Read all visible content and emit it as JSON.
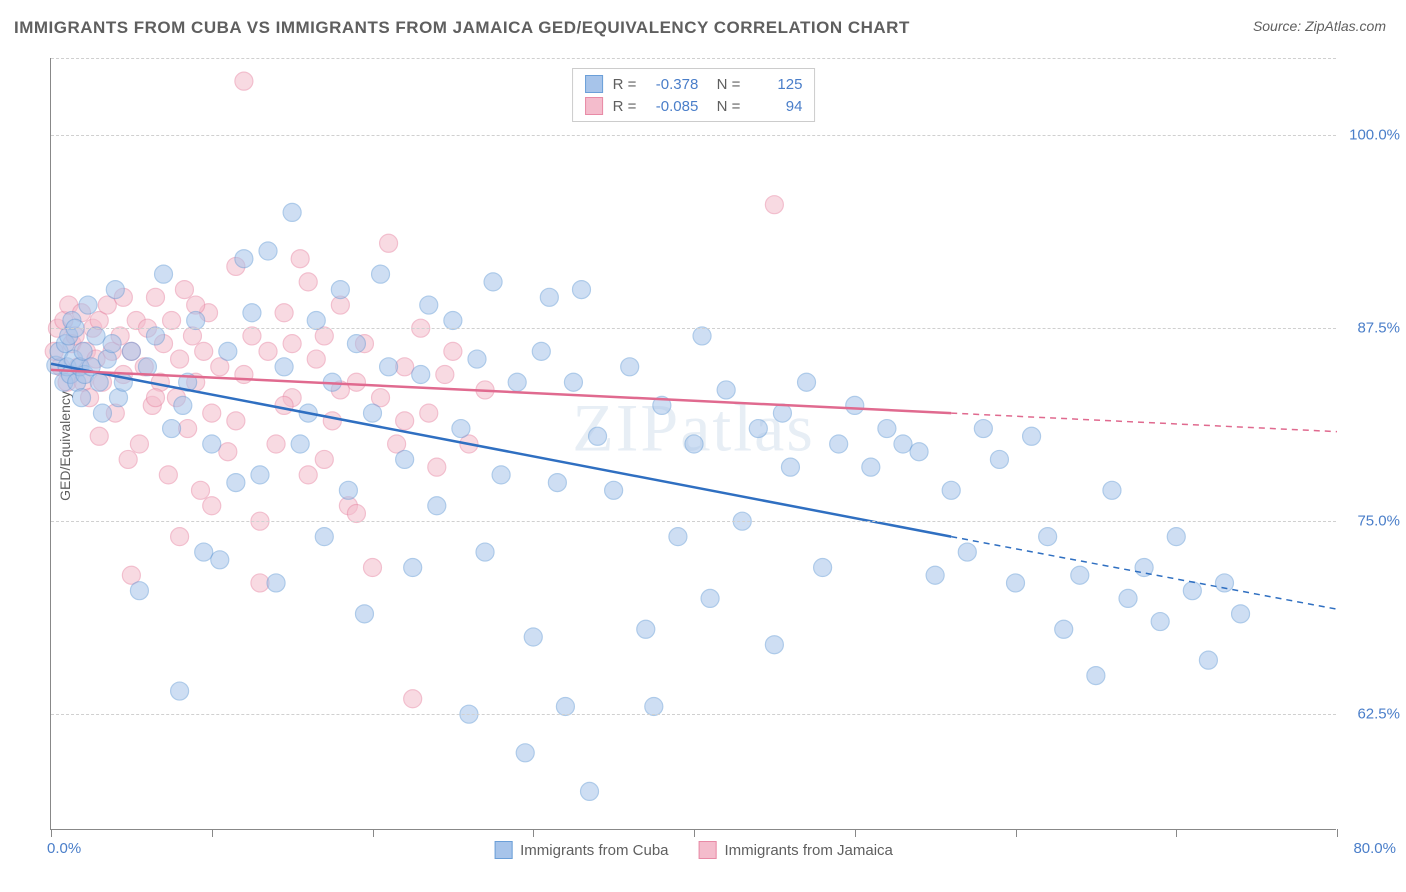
{
  "title": "IMMIGRANTS FROM CUBA VS IMMIGRANTS FROM JAMAICA GED/EQUIVALENCY CORRELATION CHART",
  "source": "Source: ZipAtlas.com",
  "ylabel": "GED/Equivalency",
  "watermark": "ZIPatlas",
  "chart": {
    "type": "scatter",
    "xlim": [
      0,
      80
    ],
    "ylim": [
      55,
      105
    ],
    "xtick_step": 10,
    "y_gridlines": [
      62.5,
      75.0,
      87.5,
      100.0,
      105.0
    ],
    "y_labels": [
      "62.5%",
      "75.0%",
      "87.5%",
      "100.0%"
    ],
    "x_label_min": "0.0%",
    "x_label_max": "80.0%",
    "background_color": "#ffffff",
    "grid_color": "#d0d0d0",
    "axis_color": "#888888",
    "tick_label_color": "#4a7ec9",
    "marker_radius": 9,
    "marker_opacity": 0.55,
    "line_width": 2.5,
    "series": [
      {
        "name": "Immigrants from Cuba",
        "color_fill": "#a7c4ea",
        "color_stroke": "#6b9fd8",
        "line_color": "#2f6fc1",
        "R": "-0.378",
        "N": "125",
        "trend": {
          "x1": 0,
          "y1": 85.2,
          "x2_solid": 56,
          "y2_solid": 74.0,
          "x2": 80,
          "y2": 69.3
        },
        "points": [
          [
            0.3,
            85.1
          ],
          [
            0.5,
            86.0
          ],
          [
            0.8,
            84.0
          ],
          [
            0.9,
            86.5
          ],
          [
            1.0,
            85.0
          ],
          [
            1.1,
            87.0
          ],
          [
            1.2,
            84.5
          ],
          [
            1.3,
            88.0
          ],
          [
            1.4,
            85.5
          ],
          [
            1.5,
            87.5
          ],
          [
            1.6,
            84.0
          ],
          [
            1.8,
            85.0
          ],
          [
            1.9,
            83.0
          ],
          [
            2.0,
            86.0
          ],
          [
            2.1,
            84.5
          ],
          [
            2.3,
            89.0
          ],
          [
            2.5,
            85.0
          ],
          [
            2.8,
            87.0
          ],
          [
            3.0,
            84.0
          ],
          [
            3.2,
            82.0
          ],
          [
            3.5,
            85.5
          ],
          [
            3.8,
            86.5
          ],
          [
            4.0,
            90.0
          ],
          [
            4.2,
            83.0
          ],
          [
            4.5,
            84.0
          ],
          [
            5.0,
            86.0
          ],
          [
            5.5,
            70.5
          ],
          [
            6.0,
            85.0
          ],
          [
            6.5,
            87.0
          ],
          [
            7.0,
            91.0
          ],
          [
            7.5,
            81.0
          ],
          [
            8.0,
            64.0
          ],
          [
            8.2,
            82.5
          ],
          [
            8.5,
            84.0
          ],
          [
            9.0,
            88.0
          ],
          [
            9.5,
            73.0
          ],
          [
            10.0,
            80.0
          ],
          [
            10.5,
            72.5
          ],
          [
            11.0,
            86.0
          ],
          [
            11.5,
            77.5
          ],
          [
            12.0,
            92.0
          ],
          [
            12.5,
            88.5
          ],
          [
            13.0,
            78.0
          ],
          [
            13.5,
            92.5
          ],
          [
            14.0,
            71.0
          ],
          [
            14.5,
            85.0
          ],
          [
            15.0,
            95.0
          ],
          [
            15.5,
            80.0
          ],
          [
            16.0,
            82.0
          ],
          [
            16.5,
            88.0
          ],
          [
            17.0,
            74.0
          ],
          [
            17.5,
            84.0
          ],
          [
            18.0,
            90.0
          ],
          [
            18.5,
            77.0
          ],
          [
            19.0,
            86.5
          ],
          [
            19.5,
            69.0
          ],
          [
            20.0,
            82.0
          ],
          [
            20.5,
            91.0
          ],
          [
            21.0,
            85.0
          ],
          [
            22.0,
            79.0
          ],
          [
            22.5,
            72.0
          ],
          [
            23.0,
            84.5
          ],
          [
            23.5,
            89.0
          ],
          [
            24.0,
            76.0
          ],
          [
            25.0,
            88.0
          ],
          [
            25.5,
            81.0
          ],
          [
            26.0,
            62.5
          ],
          [
            26.5,
            85.5
          ],
          [
            27.0,
            73.0
          ],
          [
            27.5,
            90.5
          ],
          [
            28.0,
            78.0
          ],
          [
            29.0,
            84.0
          ],
          [
            29.5,
            60.0
          ],
          [
            30.0,
            67.5
          ],
          [
            30.5,
            86.0
          ],
          [
            31.0,
            89.5
          ],
          [
            31.5,
            77.5
          ],
          [
            32.0,
            63.0
          ],
          [
            32.5,
            84.0
          ],
          [
            33.0,
            90.0
          ],
          [
            33.5,
            57.5
          ],
          [
            34.0,
            80.5
          ],
          [
            35.0,
            77.0
          ],
          [
            36.0,
            85.0
          ],
          [
            37.0,
            68.0
          ],
          [
            37.5,
            63.0
          ],
          [
            38.0,
            82.5
          ],
          [
            39.0,
            74.0
          ],
          [
            40.0,
            80.0
          ],
          [
            40.5,
            87.0
          ],
          [
            41.0,
            70.0
          ],
          [
            42.0,
            83.5
          ],
          [
            43.0,
            75.0
          ],
          [
            44.0,
            81.0
          ],
          [
            45.0,
            67.0
          ],
          [
            45.5,
            82.0
          ],
          [
            46.0,
            78.5
          ],
          [
            47.0,
            84.0
          ],
          [
            48.0,
            72.0
          ],
          [
            49.0,
            80.0
          ],
          [
            50.0,
            82.5
          ],
          [
            51.0,
            78.5
          ],
          [
            52.0,
            81.0
          ],
          [
            53.0,
            80.0
          ],
          [
            54.0,
            79.5
          ],
          [
            55.0,
            71.5
          ],
          [
            56.0,
            77.0
          ],
          [
            57.0,
            73.0
          ],
          [
            58.0,
            81.0
          ],
          [
            59.0,
            79.0
          ],
          [
            60.0,
            71.0
          ],
          [
            61.0,
            80.5
          ],
          [
            62.0,
            74.0
          ],
          [
            63.0,
            68.0
          ],
          [
            64.0,
            71.5
          ],
          [
            65.0,
            65.0
          ],
          [
            66.0,
            77.0
          ],
          [
            67.0,
            70.0
          ],
          [
            68.0,
            72.0
          ],
          [
            69.0,
            68.5
          ],
          [
            70.0,
            74.0
          ],
          [
            71.0,
            70.5
          ],
          [
            72.0,
            66.0
          ],
          [
            73.0,
            71.0
          ],
          [
            74.0,
            69.0
          ]
        ]
      },
      {
        "name": "Immigrants from Jamaica",
        "color_fill": "#f4bccc",
        "color_stroke": "#e88aa6",
        "line_color": "#e06a8f",
        "R": "-0.085",
        "N": "94",
        "trend": {
          "x1": 0,
          "y1": 84.8,
          "x2_solid": 56,
          "y2_solid": 82.0,
          "x2": 80,
          "y2": 80.8
        },
        "points": [
          [
            0.2,
            86.0
          ],
          [
            0.4,
            87.5
          ],
          [
            0.6,
            85.0
          ],
          [
            0.8,
            88.0
          ],
          [
            1.0,
            84.0
          ],
          [
            1.1,
            89.0
          ],
          [
            1.3,
            86.5
          ],
          [
            1.5,
            87.0
          ],
          [
            1.7,
            85.0
          ],
          [
            1.9,
            88.5
          ],
          [
            2.0,
            84.0
          ],
          [
            2.2,
            86.0
          ],
          [
            2.4,
            83.0
          ],
          [
            2.6,
            87.5
          ],
          [
            2.8,
            85.5
          ],
          [
            3.0,
            88.0
          ],
          [
            3.2,
            84.0
          ],
          [
            3.5,
            89.0
          ],
          [
            3.8,
            86.0
          ],
          [
            4.0,
            82.0
          ],
          [
            4.3,
            87.0
          ],
          [
            4.5,
            84.5
          ],
          [
            4.8,
            79.0
          ],
          [
            5.0,
            86.0
          ],
          [
            5.3,
            88.0
          ],
          [
            5.5,
            80.0
          ],
          [
            5.8,
            85.0
          ],
          [
            6.0,
            87.5
          ],
          [
            6.3,
            82.5
          ],
          [
            6.5,
            89.5
          ],
          [
            6.8,
            84.0
          ],
          [
            7.0,
            86.5
          ],
          [
            7.3,
            78.0
          ],
          [
            7.5,
            88.0
          ],
          [
            7.8,
            83.0
          ],
          [
            8.0,
            85.5
          ],
          [
            8.3,
            90.0
          ],
          [
            8.5,
            81.0
          ],
          [
            8.8,
            87.0
          ],
          [
            9.0,
            84.0
          ],
          [
            9.3,
            77.0
          ],
          [
            9.5,
            86.0
          ],
          [
            9.8,
            88.5
          ],
          [
            10.0,
            82.0
          ],
          [
            10.5,
            85.0
          ],
          [
            11.0,
            79.5
          ],
          [
            11.5,
            91.5
          ],
          [
            12.0,
            84.5
          ],
          [
            12.5,
            87.0
          ],
          [
            13.0,
            75.0
          ],
          [
            13.5,
            86.0
          ],
          [
            14.0,
            80.0
          ],
          [
            14.5,
            88.5
          ],
          [
            15.0,
            83.0
          ],
          [
            15.5,
            92.0
          ],
          [
            16.0,
            78.0
          ],
          [
            16.5,
            85.5
          ],
          [
            17.0,
            87.0
          ],
          [
            17.5,
            81.5
          ],
          [
            18.0,
            89.0
          ],
          [
            18.5,
            76.0
          ],
          [
            19.0,
            84.0
          ],
          [
            19.5,
            86.5
          ],
          [
            20.0,
            72.0
          ],
          [
            20.5,
            83.0
          ],
          [
            21.0,
            93.0
          ],
          [
            21.5,
            80.0
          ],
          [
            22.0,
            85.0
          ],
          [
            22.5,
            63.5
          ],
          [
            23.0,
            87.5
          ],
          [
            23.5,
            82.0
          ],
          [
            24.0,
            78.5
          ],
          [
            24.5,
            84.5
          ],
          [
            25.0,
            86.0
          ],
          [
            26.0,
            80.0
          ],
          [
            27.0,
            83.5
          ],
          [
            12.0,
            103.5
          ],
          [
            13.0,
            71.0
          ],
          [
            5.0,
            71.5
          ],
          [
            8.0,
            74.0
          ],
          [
            10.0,
            76.0
          ],
          [
            14.5,
            82.5
          ],
          [
            16.0,
            90.5
          ],
          [
            18.0,
            83.5
          ],
          [
            3.0,
            80.5
          ],
          [
            4.5,
            89.5
          ],
          [
            6.5,
            83.0
          ],
          [
            9.0,
            89.0
          ],
          [
            11.5,
            81.5
          ],
          [
            15.0,
            86.5
          ],
          [
            17.0,
            79.0
          ],
          [
            22.0,
            81.5
          ],
          [
            19.0,
            75.5
          ],
          [
            45.0,
            95.5
          ]
        ]
      }
    ]
  },
  "legend_bottom": [
    {
      "label": "Immigrants from Cuba",
      "fill": "#a7c4ea",
      "stroke": "#6b9fd8"
    },
    {
      "label": "Immigrants from Jamaica",
      "fill": "#f4bccc",
      "stroke": "#e88aa6"
    }
  ]
}
